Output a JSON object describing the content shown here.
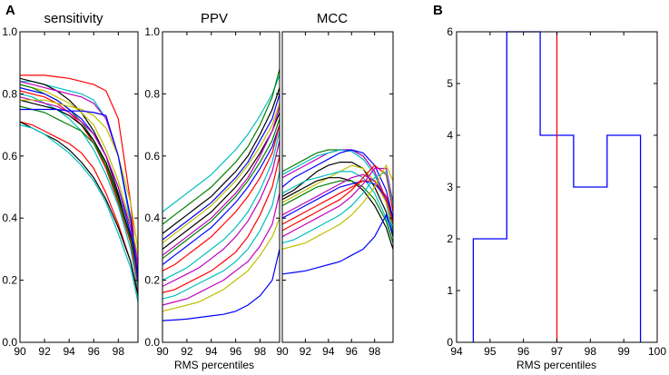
{
  "figure": {
    "panel_a_label": "A",
    "panel_b_label": "B",
    "shared_xlabel_a": "RMS percentiles"
  },
  "colors": {
    "axis": "#000000",
    "series_palette": [
      "#0000ff",
      "#008000",
      "#ff0000",
      "#00bfbf",
      "#bf00bf",
      "#bfbf00",
      "#000000"
    ],
    "hist_line": "#0000ff",
    "marker_line": "#ff0000"
  },
  "chart_data": [
    {
      "type": "line",
      "title": "sensitivity",
      "x": [
        90,
        91,
        92,
        93,
        94,
        95,
        96,
        97,
        98,
        99,
        99.6
      ],
      "xlim": [
        90,
        99.6
      ],
      "ylim": [
        0,
        1
      ],
      "xticks": [
        "90",
        "92",
        "94",
        "96",
        "98"
      ],
      "yticks": [
        "0.0",
        "0.2",
        "0.4",
        "0.6",
        "0.8",
        "1.0"
      ],
      "series": [
        {
          "color": "#ff0000",
          "values": [
            0.86,
            0.86,
            0.86,
            0.855,
            0.85,
            0.84,
            0.83,
            0.81,
            0.72,
            0.45,
            0.2
          ]
        },
        {
          "color": "#00bfbf",
          "values": [
            0.84,
            0.84,
            0.83,
            0.82,
            0.81,
            0.8,
            0.78,
            0.72,
            0.6,
            0.38,
            0.2
          ]
        },
        {
          "color": "#000000",
          "values": [
            0.85,
            0.84,
            0.83,
            0.81,
            0.78,
            0.74,
            0.68,
            0.6,
            0.48,
            0.33,
            0.22
          ]
        },
        {
          "color": "#bf00bf",
          "values": [
            0.84,
            0.83,
            0.82,
            0.81,
            0.8,
            0.79,
            0.77,
            0.72,
            0.6,
            0.4,
            0.25
          ]
        },
        {
          "color": "#bfbf00",
          "values": [
            0.83,
            0.82,
            0.81,
            0.79,
            0.77,
            0.74,
            0.7,
            0.62,
            0.52,
            0.38,
            0.28
          ]
        },
        {
          "color": "#008000",
          "values": [
            0.83,
            0.82,
            0.8,
            0.78,
            0.75,
            0.71,
            0.65,
            0.57,
            0.45,
            0.33,
            0.22
          ]
        },
        {
          "color": "#0000ff",
          "values": [
            0.82,
            0.81,
            0.8,
            0.78,
            0.75,
            0.72,
            0.67,
            0.6,
            0.5,
            0.35,
            0.2
          ]
        },
        {
          "color": "#ff0000",
          "values": [
            0.81,
            0.8,
            0.79,
            0.77,
            0.74,
            0.7,
            0.64,
            0.56,
            0.45,
            0.32,
            0.18
          ]
        },
        {
          "color": "#00bfbf",
          "values": [
            0.8,
            0.79,
            0.77,
            0.75,
            0.72,
            0.68,
            0.62,
            0.54,
            0.44,
            0.3,
            0.17
          ]
        },
        {
          "color": "#bf00bf",
          "values": [
            0.79,
            0.78,
            0.77,
            0.76,
            0.74,
            0.71,
            0.67,
            0.6,
            0.5,
            0.37,
            0.24
          ]
        },
        {
          "color": "#000000",
          "values": [
            0.78,
            0.77,
            0.76,
            0.75,
            0.73,
            0.7,
            0.65,
            0.58,
            0.47,
            0.34,
            0.22
          ]
        },
        {
          "color": "#bfbf00",
          "values": [
            0.78,
            0.78,
            0.78,
            0.77,
            0.76,
            0.75,
            0.73,
            0.69,
            0.6,
            0.45,
            0.3
          ]
        },
        {
          "color": "#008000",
          "values": [
            0.76,
            0.75,
            0.74,
            0.72,
            0.7,
            0.68,
            0.64,
            0.57,
            0.46,
            0.33,
            0.21
          ]
        },
        {
          "color": "#0000ff",
          "values": [
            0.75,
            0.75,
            0.75,
            0.75,
            0.745,
            0.745,
            0.74,
            0.73,
            0.6,
            0.4,
            0.2
          ]
        },
        {
          "color": "#ff0000",
          "values": [
            0.71,
            0.7,
            0.68,
            0.66,
            0.64,
            0.61,
            0.56,
            0.48,
            0.38,
            0.26,
            0.16
          ]
        },
        {
          "color": "#000000",
          "values": [
            0.71,
            0.69,
            0.67,
            0.65,
            0.62,
            0.58,
            0.53,
            0.46,
            0.37,
            0.26,
            0.15
          ]
        },
        {
          "color": "#00bfbf",
          "values": [
            0.7,
            0.69,
            0.67,
            0.64,
            0.61,
            0.57,
            0.52,
            0.45,
            0.35,
            0.24,
            0.13
          ]
        }
      ]
    },
    {
      "type": "line",
      "title": "PPV",
      "x": [
        90,
        91,
        92,
        93,
        94,
        95,
        96,
        97,
        98,
        99,
        99.6
      ],
      "xlim": [
        90,
        99.6
      ],
      "ylim": [
        0,
        1
      ],
      "xlabel": "RMS percentiles",
      "xticks": [
        "90",
        "92",
        "94",
        "96",
        "98"
      ],
      "yticks": [
        "0.0",
        "0.2",
        "0.4",
        "0.6",
        "0.8",
        "1.0"
      ],
      "series": [
        {
          "color": "#00bfbf",
          "values": [
            0.42,
            0.45,
            0.48,
            0.51,
            0.54,
            0.58,
            0.62,
            0.67,
            0.73,
            0.8,
            0.86
          ]
        },
        {
          "color": "#008000",
          "values": [
            0.38,
            0.41,
            0.44,
            0.47,
            0.5,
            0.54,
            0.58,
            0.63,
            0.7,
            0.79,
            0.88
          ]
        },
        {
          "color": "#000000",
          "values": [
            0.35,
            0.38,
            0.41,
            0.44,
            0.47,
            0.51,
            0.55,
            0.6,
            0.67,
            0.75,
            0.82
          ]
        },
        {
          "color": "#0000ff",
          "values": [
            0.33,
            0.36,
            0.39,
            0.42,
            0.45,
            0.49,
            0.53,
            0.58,
            0.65,
            0.72,
            0.8
          ]
        },
        {
          "color": "#bfbf00",
          "values": [
            0.32,
            0.35,
            0.38,
            0.41,
            0.44,
            0.48,
            0.52,
            0.57,
            0.63,
            0.7,
            0.77
          ]
        },
        {
          "color": "#000000",
          "values": [
            0.3,
            0.33,
            0.36,
            0.39,
            0.42,
            0.46,
            0.5,
            0.55,
            0.61,
            0.68,
            0.74
          ]
        },
        {
          "color": "#bf00bf",
          "values": [
            0.28,
            0.31,
            0.34,
            0.37,
            0.4,
            0.44,
            0.48,
            0.53,
            0.6,
            0.68,
            0.76
          ]
        },
        {
          "color": "#008000",
          "values": [
            0.27,
            0.3,
            0.33,
            0.36,
            0.39,
            0.43,
            0.47,
            0.52,
            0.58,
            0.65,
            0.72
          ]
        },
        {
          "color": "#0000ff",
          "values": [
            0.25,
            0.28,
            0.31,
            0.34,
            0.37,
            0.41,
            0.45,
            0.5,
            0.56,
            0.63,
            0.7
          ]
        },
        {
          "color": "#ff0000",
          "values": [
            0.23,
            0.25,
            0.28,
            0.31,
            0.34,
            0.38,
            0.42,
            0.47,
            0.53,
            0.61,
            0.7
          ]
        },
        {
          "color": "#00bfbf",
          "values": [
            0.2,
            0.22,
            0.24,
            0.27,
            0.3,
            0.33,
            0.37,
            0.42,
            0.49,
            0.58,
            0.68
          ]
        },
        {
          "color": "#bf00bf",
          "values": [
            0.18,
            0.2,
            0.22,
            0.24,
            0.27,
            0.3,
            0.34,
            0.39,
            0.46,
            0.55,
            0.65
          ]
        },
        {
          "color": "#ff0000",
          "values": [
            0.16,
            0.17,
            0.19,
            0.21,
            0.23,
            0.26,
            0.29,
            0.34,
            0.41,
            0.5,
            0.6
          ]
        },
        {
          "color": "#00bfbf",
          "values": [
            0.14,
            0.15,
            0.17,
            0.19,
            0.21,
            0.23,
            0.26,
            0.3,
            0.36,
            0.44,
            0.55
          ]
        },
        {
          "color": "#bf00bf",
          "values": [
            0.12,
            0.13,
            0.14,
            0.16,
            0.18,
            0.2,
            0.23,
            0.26,
            0.31,
            0.38,
            0.48
          ]
        },
        {
          "color": "#bfbf00",
          "values": [
            0.1,
            0.11,
            0.12,
            0.13,
            0.15,
            0.17,
            0.2,
            0.23,
            0.28,
            0.34,
            0.4
          ]
        },
        {
          "color": "#0000ff",
          "values": [
            0.07,
            0.072,
            0.075,
            0.08,
            0.085,
            0.09,
            0.1,
            0.12,
            0.15,
            0.2,
            0.3
          ]
        }
      ]
    },
    {
      "type": "line",
      "title": "MCC",
      "x": [
        90,
        91,
        92,
        93,
        94,
        95,
        96,
        97,
        98,
        99,
        99.6
      ],
      "xlim": [
        90,
        99.6
      ],
      "ylim": [
        0,
        1
      ],
      "xticks": [
        "90",
        "92",
        "94",
        "96",
        "98"
      ],
      "series": [
        {
          "color": "#008000",
          "values": [
            0.55,
            0.57,
            0.59,
            0.61,
            0.62,
            0.62,
            0.62,
            0.6,
            0.55,
            0.45,
            0.36
          ]
        },
        {
          "color": "#bf00bf",
          "values": [
            0.53,
            0.55,
            0.57,
            0.59,
            0.61,
            0.62,
            0.62,
            0.6,
            0.55,
            0.46,
            0.38
          ]
        },
        {
          "color": "#00bfbf",
          "values": [
            0.54,
            0.56,
            0.58,
            0.6,
            0.61,
            0.62,
            0.615,
            0.59,
            0.54,
            0.45,
            0.35
          ]
        },
        {
          "color": "#0000ff",
          "values": [
            0.5,
            0.53,
            0.55,
            0.57,
            0.59,
            0.61,
            0.62,
            0.61,
            0.57,
            0.49,
            0.4
          ]
        },
        {
          "color": "#000000",
          "values": [
            0.47,
            0.49,
            0.52,
            0.55,
            0.57,
            0.58,
            0.58,
            0.56,
            0.5,
            0.42,
            0.34
          ]
        },
        {
          "color": "#bfbf00",
          "values": [
            0.45,
            0.47,
            0.49,
            0.51,
            0.53,
            0.55,
            0.57,
            0.56,
            0.52,
            0.45,
            0.38
          ]
        },
        {
          "color": "#00bfbf",
          "values": [
            0.48,
            0.5,
            0.52,
            0.53,
            0.54,
            0.55,
            0.55,
            0.53,
            0.48,
            0.4,
            0.32
          ]
        },
        {
          "color": "#000000",
          "values": [
            0.46,
            0.48,
            0.5,
            0.52,
            0.53,
            0.53,
            0.52,
            0.49,
            0.44,
            0.37,
            0.3
          ]
        },
        {
          "color": "#008000",
          "values": [
            0.44,
            0.46,
            0.48,
            0.5,
            0.51,
            0.52,
            0.52,
            0.5,
            0.46,
            0.39,
            0.32
          ]
        },
        {
          "color": "#bf00bf",
          "values": [
            0.41,
            0.43,
            0.45,
            0.47,
            0.49,
            0.51,
            0.53,
            0.54,
            0.52,
            0.46,
            0.39
          ]
        },
        {
          "color": "#0000ff",
          "values": [
            0.4,
            0.42,
            0.44,
            0.46,
            0.48,
            0.5,
            0.51,
            0.52,
            0.51,
            0.47,
            0.4
          ]
        },
        {
          "color": "#ff0000",
          "values": [
            0.38,
            0.4,
            0.42,
            0.44,
            0.46,
            0.48,
            0.5,
            0.52,
            0.52,
            0.47,
            0.38
          ]
        },
        {
          "color": "#ff0000",
          "values": [
            0.36,
            0.38,
            0.4,
            0.42,
            0.44,
            0.46,
            0.49,
            0.53,
            0.57,
            0.54,
            0.42
          ]
        },
        {
          "color": "#bf00bf",
          "values": [
            0.34,
            0.36,
            0.38,
            0.4,
            0.42,
            0.44,
            0.47,
            0.51,
            0.56,
            0.56,
            0.45
          ]
        },
        {
          "color": "#00bfbf",
          "values": [
            0.32,
            0.33,
            0.35,
            0.37,
            0.39,
            0.41,
            0.44,
            0.48,
            0.53,
            0.55,
            0.44
          ]
        },
        {
          "color": "#bfbf00",
          "values": [
            0.3,
            0.31,
            0.32,
            0.34,
            0.36,
            0.38,
            0.41,
            0.45,
            0.5,
            0.57,
            0.52
          ]
        },
        {
          "color": "#0000ff",
          "values": [
            0.22,
            0.225,
            0.23,
            0.24,
            0.25,
            0.26,
            0.28,
            0.3,
            0.34,
            0.41,
            0.35
          ]
        }
      ]
    },
    {
      "type": "histogram",
      "title": "",
      "xlabel": "RMS percentiles",
      "xlim": [
        94,
        100
      ],
      "ylim": [
        0,
        6
      ],
      "xticks": [
        "94",
        "95",
        "96",
        "97",
        "98",
        "99",
        "100"
      ],
      "yticks": [
        "0",
        "1",
        "2",
        "3",
        "4",
        "5",
        "6"
      ],
      "bin_edges": [
        94.5,
        95.5,
        96.5,
        97.5,
        98.5,
        99.5
      ],
      "counts": [
        2,
        6,
        4,
        3,
        4
      ],
      "marker_x": 97,
      "marker_color": "#ff0000"
    }
  ]
}
